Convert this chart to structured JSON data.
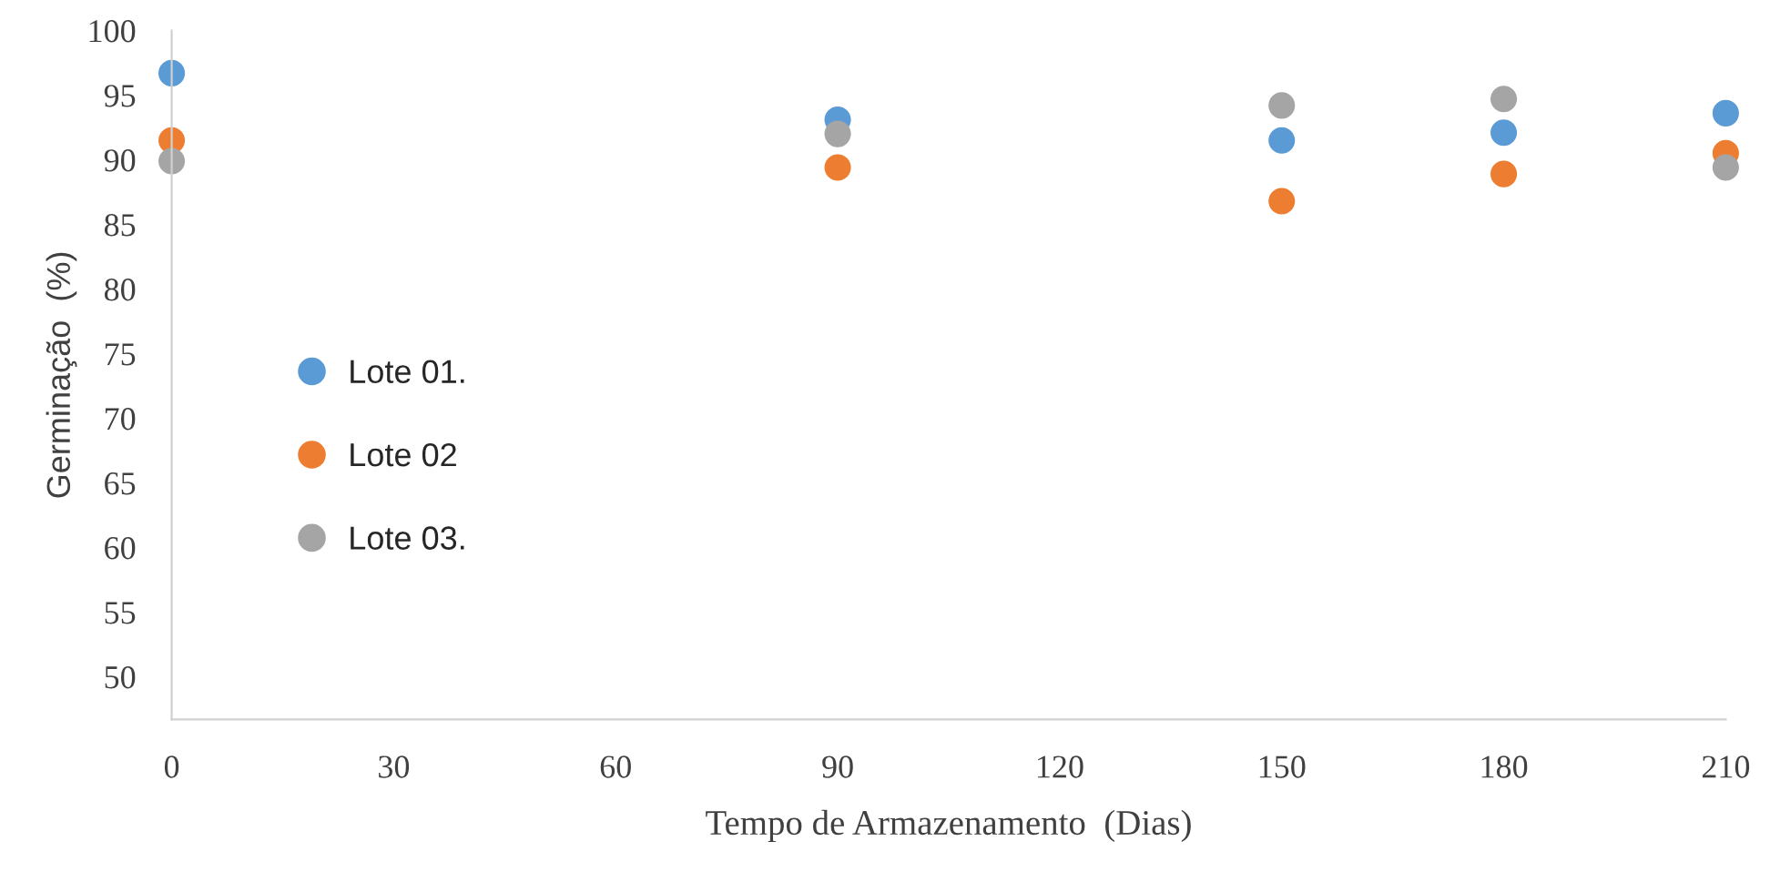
{
  "chart_data": {
    "type": "scatter",
    "xlabel": "Tempo de Armazenamento  (Dias)",
    "ylabel": "Germinação  (%)",
    "x": [
      0,
      90,
      150,
      180,
      210
    ],
    "series": [
      {
        "name": "Lote 01.",
        "color": "#5b9bd5",
        "values": [
          96.7,
          93.1,
          91.5,
          92.1,
          93.6
        ]
      },
      {
        "name": "Lote 02",
        "color": "#ed7d31",
        "values": [
          91.5,
          89.4,
          86.8,
          88.9,
          90.5
        ]
      },
      {
        "name": "Lote 03.",
        "color": "#a5a5a5",
        "values": [
          89.9,
          92.0,
          94.2,
          94.7,
          89.4
        ]
      }
    ],
    "xlim": [
      0,
      210
    ],
    "xticks": [
      0,
      30,
      60,
      90,
      120,
      150,
      180,
      210
    ],
    "ylim": [
      46.7,
      100
    ],
    "yticks": [
      50,
      55,
      60,
      65,
      70,
      75,
      80,
      85,
      90,
      95,
      100
    ],
    "grid": false,
    "legend": "left",
    "marker": "circle"
  }
}
